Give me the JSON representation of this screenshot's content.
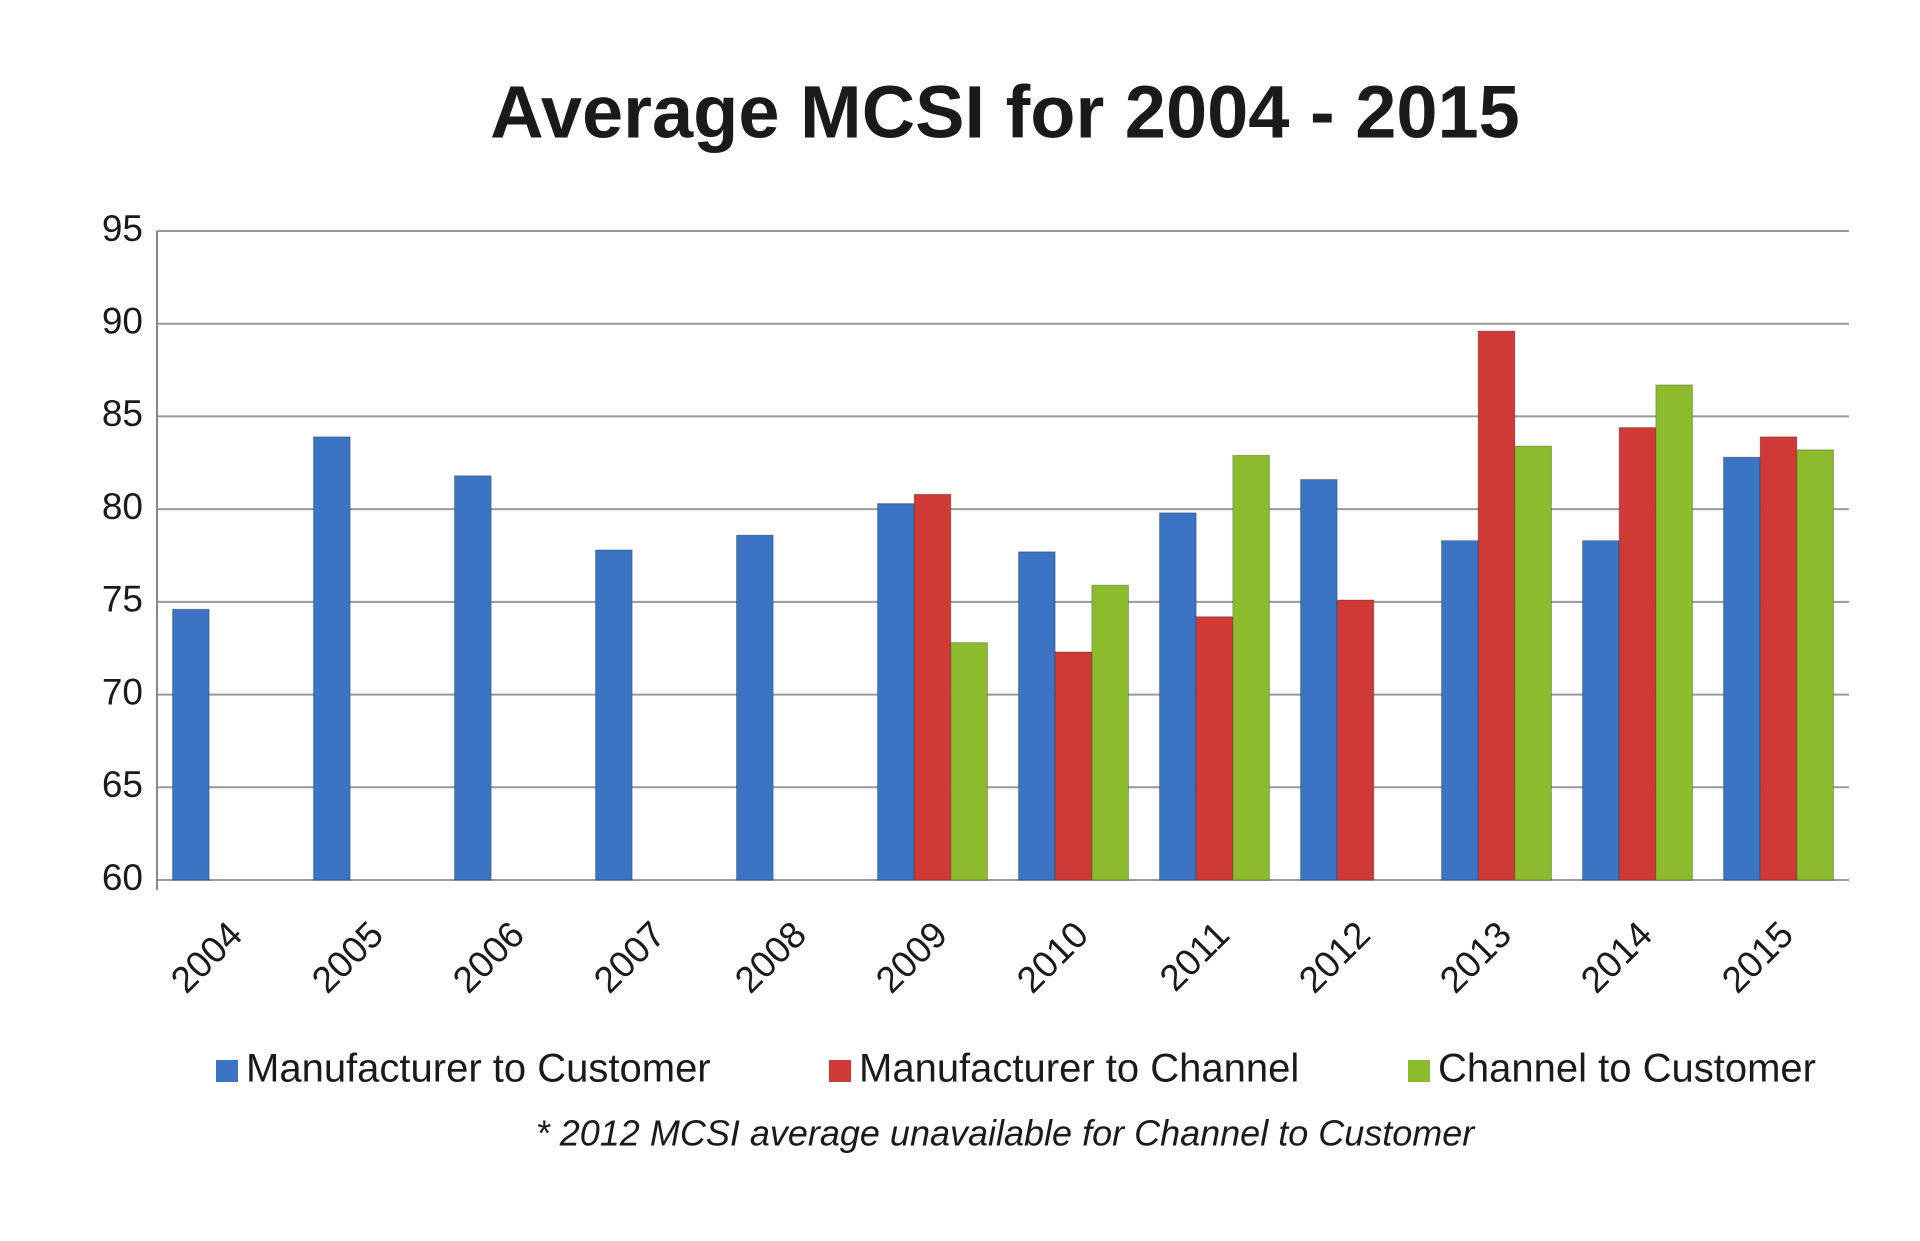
{
  "chart_data": {
    "type": "bar",
    "title": "Average MCSI for 2004 - 2015",
    "categories": [
      "2004",
      "2005",
      "2006",
      "2007",
      "2008",
      "2009",
      "2010",
      "2011",
      "2012",
      "2013",
      "2014",
      "2015"
    ],
    "series": [
      {
        "name": "Manufacturer to Customer",
        "color": "#3a74c2",
        "values": [
          74.6,
          83.9,
          81.8,
          77.8,
          78.6,
          80.3,
          77.7,
          79.8,
          81.6,
          78.3,
          78.3,
          82.8
        ]
      },
      {
        "name": "Manufacturer to Channel",
        "color": "#cf3a36",
        "values": [
          null,
          null,
          null,
          null,
          null,
          80.8,
          72.3,
          74.2,
          75.1,
          89.6,
          84.4,
          83.9
        ]
      },
      {
        "name": "Channel to Customer",
        "color": "#8dbb2e",
        "values": [
          null,
          null,
          null,
          null,
          null,
          72.8,
          75.9,
          82.9,
          null,
          83.4,
          86.7,
          83.2
        ]
      }
    ],
    "ylim": [
      60,
      95
    ],
    "yticks": [
      60,
      65,
      70,
      75,
      80,
      85,
      90,
      95
    ],
    "grid": true,
    "legend": "bottom",
    "annotation": "* 2012 MCSI average unavailable for Channel to Customer"
  }
}
